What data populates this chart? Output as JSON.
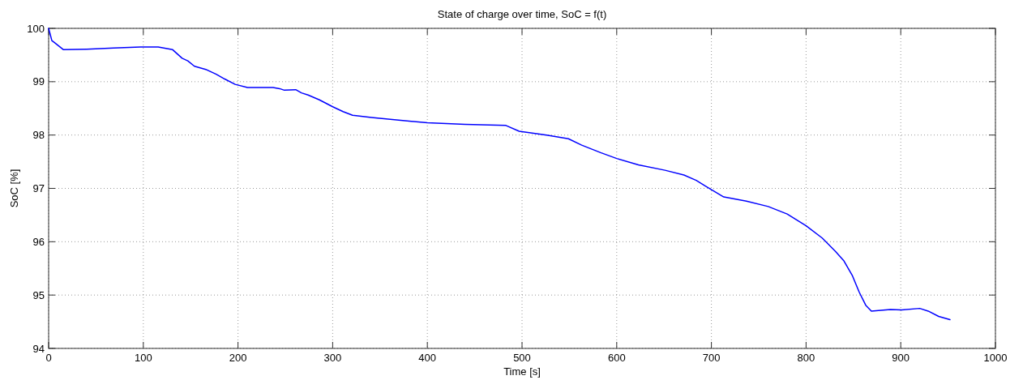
{
  "chart_data": {
    "type": "line",
    "title": "State of charge over time, SoC = f(t)",
    "xlabel": "Time [s]",
    "ylabel": "SoC [%]",
    "xlim": [
      0,
      1000
    ],
    "xticks": [
      0,
      100,
      200,
      300,
      400,
      500,
      600,
      700,
      800,
      900,
      1000
    ],
    "ylim": [
      94,
      100
    ],
    "yticks": [
      94,
      95,
      96,
      97,
      98,
      99,
      100
    ],
    "grid": true,
    "line_style": "solid",
    "series": [
      {
        "color": "#0000ff",
        "x": [
          0,
          3.4,
          5.7,
          15.7,
          40,
          68.6,
          97,
          115.7,
          131,
          141,
          147,
          154,
          166,
          177,
          186,
          197,
          210,
          237,
          244,
          249,
          261,
          267,
          274,
          286,
          300,
          311,
          321,
          341,
          363,
          400,
          440,
          483,
          497,
          526,
          549,
          563,
          583,
          600,
          623,
          651,
          671,
          684,
          694,
          713,
          737,
          760,
          780,
          800,
          817,
          831,
          840,
          849,
          856,
          863,
          869,
          889,
          901,
          920,
          929,
          940,
          952
        ],
        "values": [
          100,
          99.77,
          99.74,
          99.6,
          99.61,
          99.63,
          99.65,
          99.65,
          99.6,
          99.44,
          99.39,
          99.29,
          99.23,
          99.14,
          99.05,
          98.95,
          98.89,
          98.89,
          98.87,
          98.84,
          98.85,
          98.79,
          98.75,
          98.66,
          98.53,
          98.44,
          98.37,
          98.33,
          98.29,
          98.23,
          98.2,
          98.18,
          98.07,
          98.0,
          97.93,
          97.81,
          97.67,
          97.56,
          97.44,
          97.34,
          97.25,
          97.15,
          97.04,
          96.84,
          96.76,
          96.66,
          96.52,
          96.3,
          96.07,
          95.82,
          95.64,
          95.36,
          95.06,
          94.81,
          94.7,
          94.73,
          94.72,
          94.75,
          94.7,
          94.6,
          94.54
        ]
      }
    ]
  }
}
